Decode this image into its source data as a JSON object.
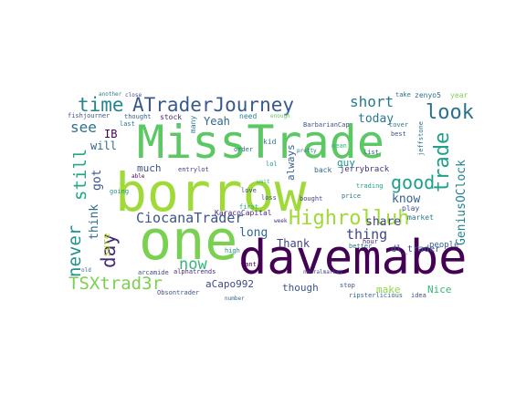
{
  "wordcloud": {
    "words": [
      {
        "text": "MissTrade",
        "color": "#5cc863"
      },
      {
        "text": "borrow",
        "color": "#a0da39"
      },
      {
        "text": "one",
        "color": "#7ad151"
      },
      {
        "text": "davemabe",
        "color": "#440154"
      },
      {
        "text": "ATraderJourney",
        "color": "#38598c"
      },
      {
        "text": "Highrolluh",
        "color": "#a0da39"
      },
      {
        "text": "CiocanaTrader",
        "color": "#3b528b"
      },
      {
        "text": "look",
        "color": "#2d708e"
      },
      {
        "text": "good",
        "color": "#1f9e89"
      },
      {
        "text": "time",
        "color": "#25848e"
      },
      {
        "text": "trade",
        "color": "#1fa187"
      },
      {
        "text": "short",
        "color": "#2a788e"
      },
      {
        "text": "TSXtrad3r",
        "color": "#7ad151"
      },
      {
        "text": "never",
        "color": "#21918c"
      },
      {
        "text": "day",
        "color": "#482878"
      },
      {
        "text": "still",
        "color": "#22a884"
      },
      {
        "text": "see",
        "color": "#2c728e"
      },
      {
        "text": "now",
        "color": "#35b779"
      },
      {
        "text": "thing",
        "color": "#3e4989"
      },
      {
        "text": "long",
        "color": "#31688e"
      },
      {
        "text": "GeniusOClock",
        "color": "#26828e"
      },
      {
        "text": "today",
        "color": "#2a788e"
      },
      {
        "text": "share",
        "color": "#414487"
      },
      {
        "text": "know",
        "color": "#33638d"
      },
      {
        "text": "Thank",
        "color": "#3f4788"
      },
      {
        "text": "Yeah",
        "color": "#31688e"
      },
      {
        "text": "think",
        "color": "#2e6e8e"
      },
      {
        "text": "got",
        "color": "#3b528b"
      },
      {
        "text": "will",
        "color": "#31688e"
      },
      {
        "text": "IB",
        "color": "#440154"
      },
      {
        "text": "sure",
        "color": "#b5de2b"
      },
      {
        "text": "much",
        "color": "#3b528b"
      },
      {
        "text": "always",
        "color": "#35608d"
      },
      {
        "text": "aCapo992",
        "color": "#3e4989"
      },
      {
        "text": "though",
        "color": "#39568c"
      },
      {
        "text": "make",
        "color": "#8fd744"
      },
      {
        "text": "Nice",
        "color": "#35b779"
      },
      {
        "text": "guy",
        "color": "#21918c"
      },
      {
        "text": "jerrybrack",
        "color": "#46327e"
      },
      {
        "text": "KaracoCapital",
        "color": "#472c7a"
      },
      {
        "text": "dl_trader",
        "color": "#3b528b"
      },
      {
        "text": "people",
        "color": "#33638d"
      },
      {
        "text": "play",
        "color": "#3b528b"
      },
      {
        "text": "market",
        "color": "#2a788e"
      },
      {
        "text": "kid",
        "color": "#2a788e"
      },
      {
        "text": "fishjourner",
        "color": "#3b528b"
      },
      {
        "text": "stock",
        "color": "#481f70"
      },
      {
        "text": "need",
        "color": "#26828e"
      },
      {
        "text": "arcamide",
        "color": "#3e4989"
      },
      {
        "text": "Obsontrader",
        "color": "#3b528b"
      },
      {
        "text": "entrylot",
        "color": "#433e85"
      },
      {
        "text": "back",
        "color": "#31688e"
      },
      {
        "text": "zenyo5",
        "color": "#2e6e8e"
      },
      {
        "text": "year",
        "color": "#7ad151"
      },
      {
        "text": "jeffstone",
        "color": "#2a788e"
      },
      {
        "text": "BarbarianCap",
        "color": "#3b528b"
      },
      {
        "text": "high",
        "color": "#1f968b"
      },
      {
        "text": "trading",
        "color": "#20a386"
      },
      {
        "text": "love",
        "color": "#3e4989"
      },
      {
        "text": "hour",
        "color": "#482878"
      },
      {
        "text": "better",
        "color": "#2a788e"
      },
      {
        "text": "mean",
        "color": "#35b779"
      },
      {
        "text": "stop",
        "color": "#3b528b"
      },
      {
        "text": "last",
        "color": "#2c728e"
      },
      {
        "text": "first",
        "color": "#22a884"
      },
      {
        "text": "want",
        "color": "#440154"
      },
      {
        "text": "order",
        "color": "#31688e"
      },
      {
        "text": "loss",
        "color": "#3b528b"
      },
      {
        "text": "ripsterlicious",
        "color": "#31688e"
      },
      {
        "text": "idea",
        "color": "#3b528b"
      },
      {
        "text": "going",
        "color": "#21918c"
      },
      {
        "text": "lol",
        "color": "#21918c"
      },
      {
        "text": "neuralmarket",
        "color": "#3e4989"
      },
      {
        "text": "enough",
        "color": "#5cc863"
      },
      {
        "text": "cover",
        "color": "#2a788e"
      },
      {
        "text": "best",
        "color": "#3b528b"
      },
      {
        "text": "price",
        "color": "#2c728e"
      },
      {
        "text": "list",
        "color": "#38598c"
      },
      {
        "text": "thought",
        "color": "#33638d"
      },
      {
        "text": "bought",
        "color": "#414487"
      },
      {
        "text": "many",
        "color": "#2a788e"
      },
      {
        "text": "alphatrends",
        "color": "#482878"
      },
      {
        "text": "take",
        "color": "#2e6e8e"
      },
      {
        "text": "number",
        "color": "#31688e"
      },
      {
        "text": "close",
        "color": "#3b528b"
      },
      {
        "text": "able",
        "color": "#440154"
      },
      {
        "text": "pretty",
        "color": "#2a788e"
      },
      {
        "text": "another",
        "color": "#26828e"
      },
      {
        "text": "wait",
        "color": "#35b779"
      },
      {
        "text": "week",
        "color": "#46327e"
      },
      {
        "text": "old",
        "color": "#31688e"
      }
    ]
  }
}
